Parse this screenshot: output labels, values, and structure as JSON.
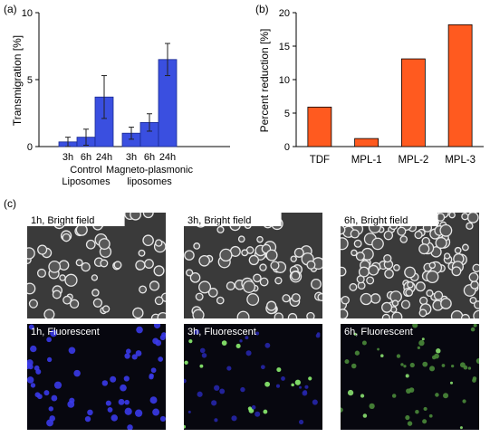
{
  "panel_labels": {
    "a": "(a)",
    "b": "(b)",
    "c": "(c)"
  },
  "chart_data": [
    {
      "id": "a",
      "type": "bar",
      "ylabel": "Transmigration [%]",
      "ylim": [
        0,
        10
      ],
      "yticks": [
        0,
        5,
        10
      ],
      "color": "#3a4fe0",
      "groups": [
        {
          "label_lines": [
            "Control",
            "Liposomes"
          ],
          "categories": [
            "3h",
            "6h",
            "24h"
          ],
          "values": [
            0.35,
            0.7,
            3.7
          ],
          "errors": [
            0.35,
            0.6,
            1.6
          ]
        },
        {
          "label_lines": [
            "Magneto-plasmonic",
            "liposomes"
          ],
          "categories": [
            "3h",
            "6h",
            "24h"
          ],
          "values": [
            1.0,
            1.8,
            6.5
          ],
          "errors": [
            0.45,
            0.65,
            1.2
          ]
        }
      ]
    },
    {
      "id": "b",
      "type": "bar",
      "ylabel": "Percent reduction [%]",
      "ylim": [
        0,
        20
      ],
      "yticks": [
        0,
        5,
        10,
        15,
        20
      ],
      "color": "#ff5a1f",
      "categories": [
        "TDF",
        "MPL-1",
        "MPL-2",
        "MPL-3"
      ],
      "values": [
        5.9,
        1.2,
        13.1,
        18.2
      ]
    }
  ],
  "micrographs": [
    {
      "caption": "1h, Bright field",
      "kind": "bright",
      "seed": 11,
      "density": 60
    },
    {
      "caption": "3h, Bright field",
      "kind": "bright",
      "seed": 23,
      "density": 75
    },
    {
      "caption": "6h, Bright field",
      "kind": "bright",
      "seed": 37,
      "density": 120
    },
    {
      "caption": "1h, Fluorescent",
      "kind": "fluor-blue",
      "seed": 41,
      "density": 55
    },
    {
      "caption": "3h, Fluorescent",
      "kind": "fluor-mixed",
      "seed": 53,
      "density": 45
    },
    {
      "caption": "6h, Fluorescent",
      "kind": "fluor-green",
      "seed": 67,
      "density": 50
    }
  ]
}
